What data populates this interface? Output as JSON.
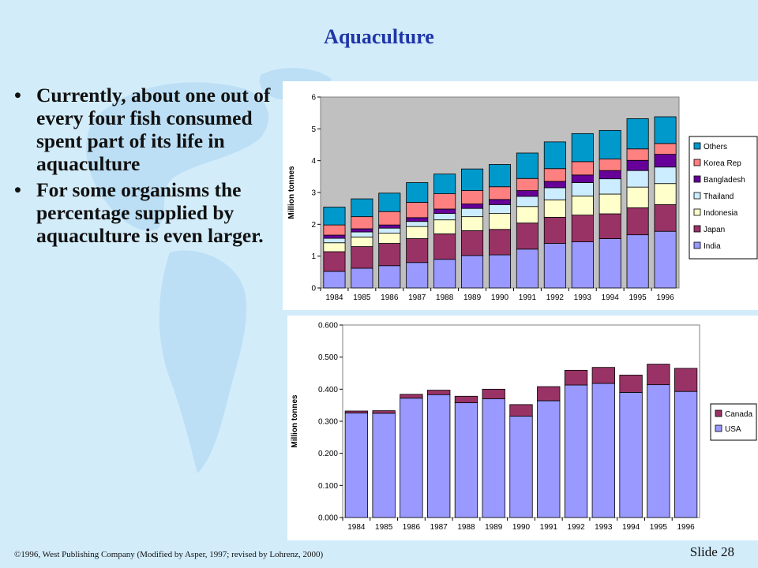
{
  "slide": {
    "title": "Aquaculture",
    "bullets": [
      {
        "symbol": "•",
        "text": "Currently, about one out of every four fish consumed spent part of its life in aquaculture"
      },
      {
        "symbol": "•",
        "text": "For some organisms the percentage supplied by aquaculture is even larger."
      }
    ],
    "footer": "©1996, West Publishing Company  (Modified by Asper, 1997; revised by Lohrenz, 2000)",
    "slide_number": "Slide 28",
    "background_color": "#d2ecfa",
    "title_color": "#1f35a8"
  },
  "chart_data": [
    {
      "type": "bar",
      "stacked": true,
      "ylabel": "Million tonnes",
      "xlabel": "",
      "ylim": [
        0,
        6
      ],
      "yticks": [
        "0",
        "1",
        "2",
        "3",
        "4",
        "5",
        "6"
      ],
      "categories": [
        "1984",
        "1985",
        "1986",
        "1987",
        "1988",
        "1989",
        "1990",
        "1991",
        "1992",
        "1993",
        "1994",
        "1995",
        "1996"
      ],
      "legend_position": "right",
      "grid": false,
      "series": [
        {
          "name": "India",
          "color": "#9999ff",
          "values": [
            0.52,
            0.62,
            0.7,
            0.8,
            0.9,
            1.02,
            1.04,
            1.22,
            1.4,
            1.45,
            1.55,
            1.67,
            1.78
          ]
        },
        {
          "name": "Japan",
          "color": "#993366",
          "values": [
            0.62,
            0.68,
            0.7,
            0.75,
            0.8,
            0.78,
            0.8,
            0.82,
            0.82,
            0.84,
            0.78,
            0.85,
            0.84
          ]
        },
        {
          "name": "Indonesia",
          "color": "#ffffcc",
          "values": [
            0.28,
            0.3,
            0.32,
            0.38,
            0.44,
            0.44,
            0.5,
            0.52,
            0.55,
            0.6,
            0.62,
            0.65,
            0.66
          ]
        },
        {
          "name": "Thailand",
          "color": "#ccecff",
          "values": [
            0.14,
            0.16,
            0.16,
            0.16,
            0.2,
            0.26,
            0.28,
            0.32,
            0.38,
            0.42,
            0.48,
            0.52,
            0.52
          ]
        },
        {
          "name": "Bangladesh",
          "color": "#660099",
          "values": [
            0.1,
            0.1,
            0.1,
            0.12,
            0.14,
            0.14,
            0.16,
            0.18,
            0.2,
            0.24,
            0.26,
            0.32,
            0.4
          ]
        },
        {
          "name": "Korea Rep",
          "color": "#ff8080",
          "values": [
            0.32,
            0.38,
            0.42,
            0.48,
            0.48,
            0.42,
            0.4,
            0.38,
            0.4,
            0.42,
            0.36,
            0.36,
            0.34
          ]
        },
        {
          "name": "Others",
          "color": "#0099cc",
          "values": [
            0.56,
            0.56,
            0.58,
            0.62,
            0.62,
            0.68,
            0.7,
            0.8,
            0.84,
            0.88,
            0.9,
            0.95,
            0.84
          ]
        }
      ]
    },
    {
      "type": "bar",
      "stacked": true,
      "ylabel": "Million tonnes",
      "xlabel": "",
      "ylim": [
        0,
        0.6
      ],
      "yticks": [
        "0.000",
        "0.100",
        "0.200",
        "0.300",
        "0.400",
        "0.500",
        "0.600"
      ],
      "categories": [
        "1984",
        "1985",
        "1986",
        "1987",
        "1988",
        "1989",
        "1990",
        "1991",
        "1992",
        "1993",
        "1994",
        "1995",
        "1996"
      ],
      "legend_position": "right",
      "grid": false,
      "series": [
        {
          "name": "USA",
          "color": "#9999ff",
          "values": [
            0.326,
            0.325,
            0.372,
            0.383,
            0.358,
            0.37,
            0.316,
            0.364,
            0.413,
            0.418,
            0.39,
            0.414,
            0.393
          ]
        },
        {
          "name": "Canada",
          "color": "#993366",
          "values": [
            0.006,
            0.008,
            0.012,
            0.014,
            0.02,
            0.03,
            0.036,
            0.044,
            0.046,
            0.05,
            0.054,
            0.064,
            0.072
          ]
        }
      ]
    }
  ]
}
